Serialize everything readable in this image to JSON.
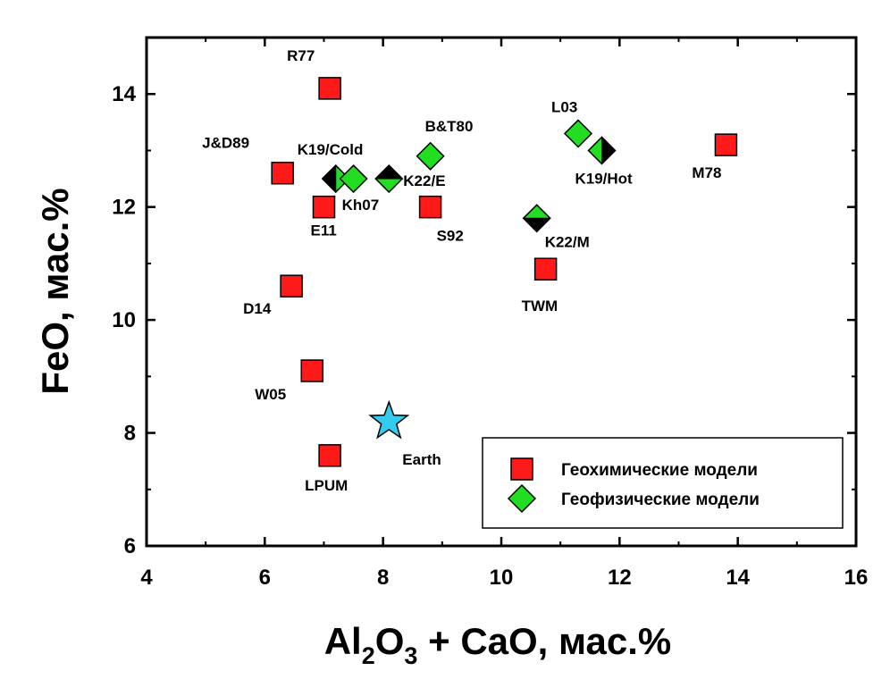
{
  "chart_data": {
    "type": "scatter",
    "xlabel_parts": [
      "Al",
      "2",
      "O",
      "3",
      " + CaO, мас.%"
    ],
    "ylabel": "FeO, мас.%",
    "xlim": [
      4,
      16
    ],
    "ylim": [
      6,
      15
    ],
    "xticks": [
      4,
      6,
      8,
      10,
      12,
      14,
      16
    ],
    "yticks": [
      6,
      8,
      10,
      12,
      14
    ],
    "grid": false,
    "legend_position": "bottom-right",
    "colors": {
      "geochemical": "#ff1a1a",
      "geophysical": "#22dd22",
      "earth": "#33ccee",
      "half_fill": "#000000"
    },
    "series": [
      {
        "name": "Геохимические модели",
        "marker": "square",
        "points": [
          {
            "label": "R77",
            "x": 7.1,
            "y": 14.1
          },
          {
            "label": "J&D89",
            "x": 6.3,
            "y": 12.6
          },
          {
            "label": "E11",
            "x": 7.0,
            "y": 12.0
          },
          {
            "label": "S92",
            "x": 8.8,
            "y": 12.0
          },
          {
            "label": "D14",
            "x": 6.45,
            "y": 10.6
          },
          {
            "label": "W05",
            "x": 6.8,
            "y": 9.1
          },
          {
            "label": "LPUM",
            "x": 7.1,
            "y": 7.6
          },
          {
            "label": "TWM",
            "x": 10.75,
            "y": 10.9
          },
          {
            "label": "M78",
            "x": 13.8,
            "y": 13.1
          }
        ]
      },
      {
        "name": "Геофизические модели",
        "marker": "diamond",
        "points": [
          {
            "label": "K19/Cold",
            "x": 7.2,
            "y": 12.5,
            "half": "left"
          },
          {
            "label": "Kh07",
            "x": 7.5,
            "y": 12.5
          },
          {
            "label": "K22/E",
            "x": 8.1,
            "y": 12.5,
            "half": "top"
          },
          {
            "label": "B&T80",
            "x": 8.8,
            "y": 12.9
          },
          {
            "label": "L03",
            "x": 11.3,
            "y": 13.3
          },
          {
            "label": "K19/Hot",
            "x": 11.7,
            "y": 13.0,
            "half": "right"
          },
          {
            "label": "K22/M",
            "x": 10.6,
            "y": 11.8,
            "half": "bottom"
          }
        ]
      },
      {
        "marker": "star",
        "points": [
          {
            "label": "Earth",
            "x": 8.1,
            "y": 8.2
          }
        ]
      }
    ]
  }
}
